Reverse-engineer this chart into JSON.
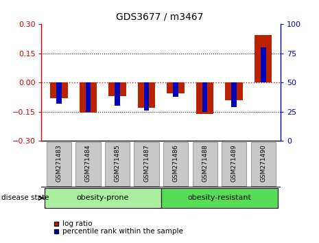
{
  "title": "GDS3677 / m3467",
  "samples": [
    "GSM271483",
    "GSM271484",
    "GSM271485",
    "GSM271487",
    "GSM271486",
    "GSM271488",
    "GSM271489",
    "GSM271490"
  ],
  "log_ratio": [
    -0.08,
    -0.155,
    -0.07,
    -0.13,
    -0.055,
    -0.16,
    -0.09,
    0.245
  ],
  "percentile_rank": [
    32,
    25,
    30,
    26,
    38,
    25,
    29,
    80
  ],
  "groups": [
    {
      "label": "obesity-prone",
      "indices": [
        0,
        1,
        2,
        3
      ],
      "color_light": "#AAEEA0",
      "color_dark": "#55DD55"
    },
    {
      "label": "obesity-resistant",
      "indices": [
        4,
        5,
        6,
        7
      ],
      "color_light": "#55DD55",
      "color_dark": "#22CC22"
    }
  ],
  "disease_state_label": "disease state",
  "ylim_left": [
    -0.3,
    0.3
  ],
  "ylim_right": [
    0,
    100
  ],
  "yticks_left": [
    -0.3,
    -0.15,
    0,
    0.15,
    0.3
  ],
  "yticks_right": [
    0,
    25,
    50,
    75,
    100
  ],
  "hlines_dotted": [
    -0.15,
    0.15
  ],
  "hline_zero_color": "#CC0000",
  "left_color": "#CC0000",
  "right_color": "#0000BB",
  "bar_color_red": "#BB2200",
  "bar_color_blue": "#0000BB",
  "bar_width": 0.6,
  "blue_bar_width": 0.18,
  "bg_color": "#FFFFFF",
  "tick_box_color": "#C8C8C8",
  "legend_red_label": "log ratio",
  "legend_blue_label": "percentile rank within the sample"
}
